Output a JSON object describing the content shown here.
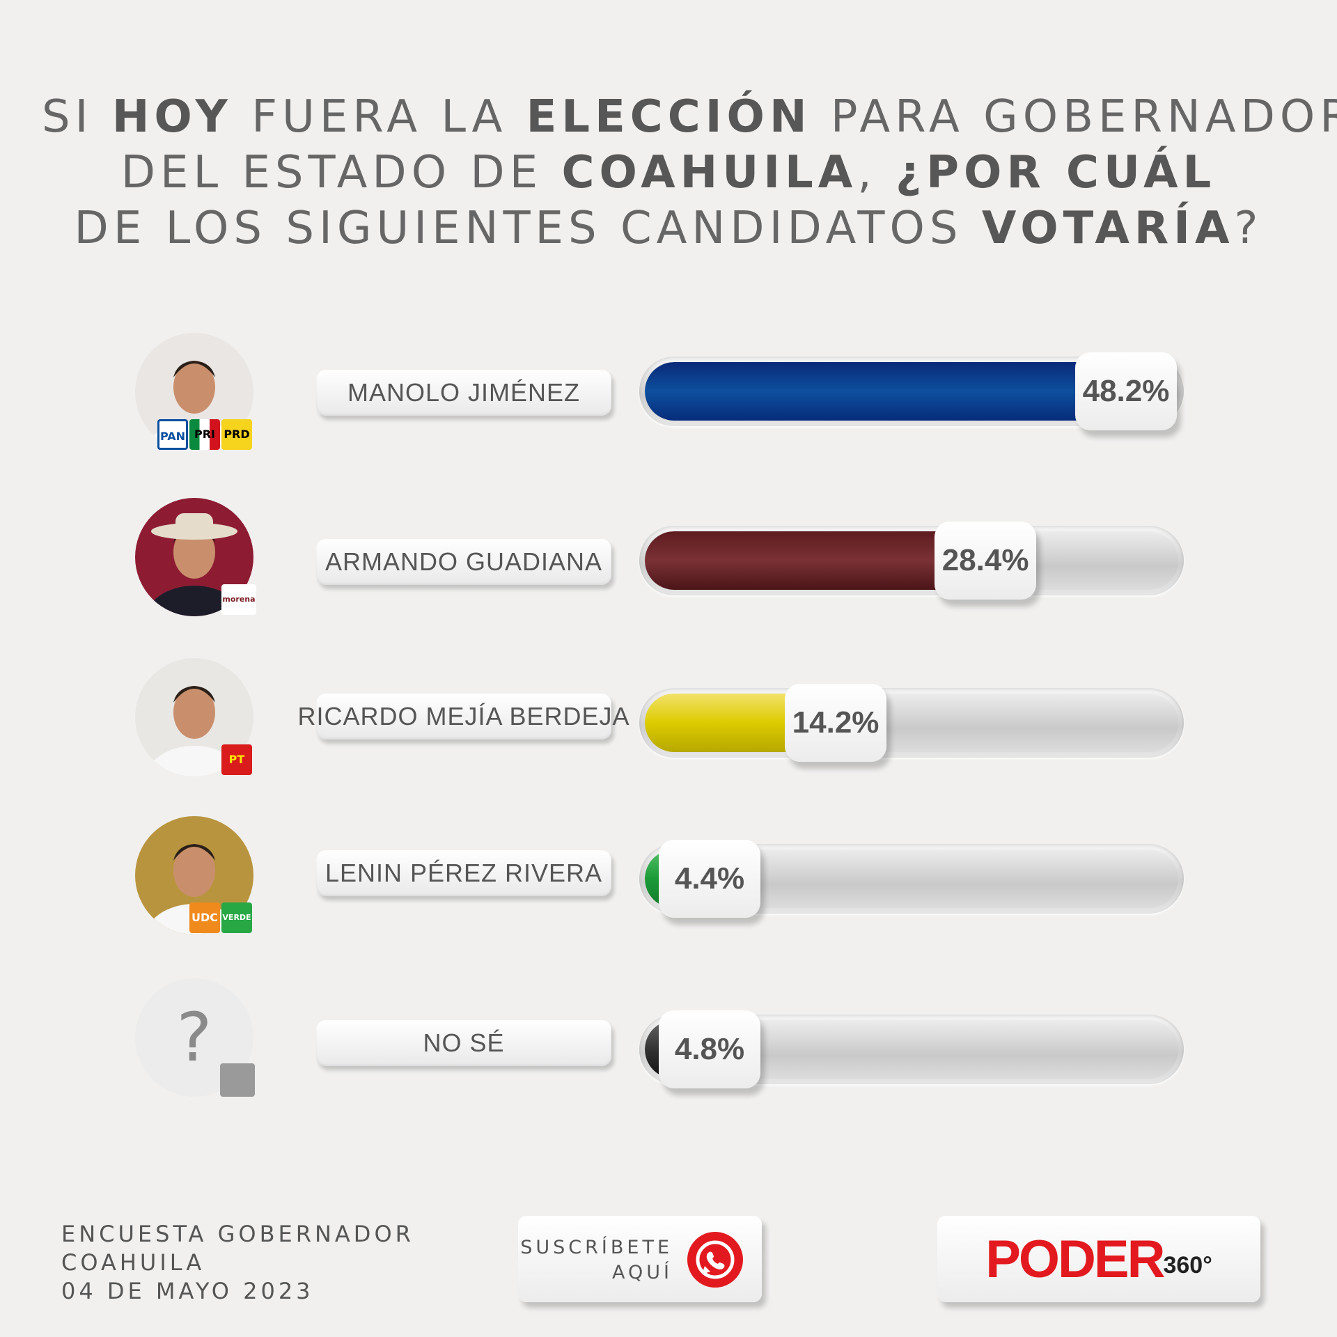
{
  "title": {
    "line1": [
      {
        "t": "SI ",
        "b": false
      },
      {
        "t": "HOY",
        "b": true
      },
      {
        "t": " FUERA LA ",
        "b": false
      },
      {
        "t": "ELECCIÓN",
        "b": true
      },
      {
        "t": " PARA GOBERNADOR",
        "b": false
      }
    ],
    "line2": [
      {
        "t": "DEL ESTADO DE ",
        "b": false
      },
      {
        "t": "COAHUILA",
        "b": true
      },
      {
        "t": ", ",
        "b": false
      },
      {
        "t": "¿POR CUÁL",
        "b": true
      }
    ],
    "line3": [
      {
        "t": "DE LOS SIGUIENTES CANDIDATOS ",
        "b": false
      },
      {
        "t": "VOTARÍA",
        "b": true
      },
      {
        "t": "?",
        "b": false
      }
    ]
  },
  "chart_data": {
    "type": "bar",
    "orientation": "horizontal",
    "categories": [
      "MANOLO JIMÉNEZ",
      "ARMANDO GUADIANA",
      "RICARDO MEJÍA BERDEJA",
      "LENIN PÉREZ RIVERA",
      "NO SÉ"
    ],
    "values": [
      48.2,
      28.4,
      14.2,
      4.4,
      4.8
    ],
    "value_labels": [
      "48.2%",
      "28.4%",
      "14.2%",
      "4.4%",
      "4.8%"
    ],
    "colors": [
      "#0c3a86",
      "#6b2326",
      "#e1cf00",
      "#1e9b3c",
      "#3a3a3a"
    ],
    "xlim": [
      0,
      48.2
    ],
    "party_logos": [
      [
        "PAN",
        "PRI",
        "PRD"
      ],
      [
        "morena"
      ],
      [
        "PT"
      ],
      [
        "UDC",
        "VERDE"
      ],
      []
    ],
    "unknown_symbol": "?"
  },
  "footer": {
    "lines": [
      "ENCUESTA GOBERNADOR",
      "COAHUILA",
      "04 DE MAYO 2023"
    ],
    "subscribe": [
      "SUSCRÍBETE",
      "AQUÍ"
    ],
    "brand_main": "PODER",
    "brand_suffix": "360°",
    "whatsapp_icon": "whatsapp-icon"
  }
}
